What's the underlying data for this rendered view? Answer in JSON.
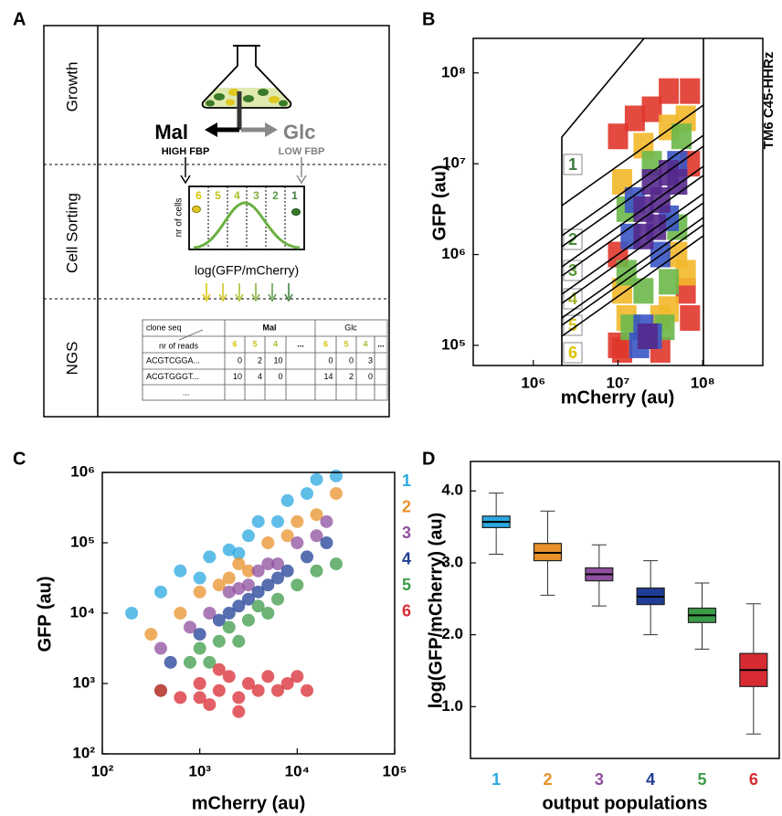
{
  "panel_a": {
    "label": "A",
    "stages": [
      "Growth",
      "Cell Sorting",
      "NGS"
    ],
    "conditions": [
      {
        "name": "Mal",
        "fbp": "HIGH FBP",
        "color": "#000000"
      },
      {
        "name": "Glc",
        "fbp": "LOW FBP",
        "color": "#808080"
      }
    ],
    "histogram": {
      "gates": [
        "6",
        "5",
        "4",
        "3",
        "2",
        "1"
      ],
      "gate_colors": [
        "#d8c400",
        "#c8c21a",
        "#a9bd2c",
        "#86ad3c",
        "#5c9a44",
        "#3a7a3a"
      ],
      "ylabel": "nr of cells",
      "xlabel": "log(GFP/mCherry)"
    },
    "table": {
      "corner_top": "clone seq",
      "corner_bottom": "nr of reads",
      "groups": [
        "Mal",
        "Glc"
      ],
      "columns": [
        "6",
        "5",
        "4",
        "...",
        "6",
        "5",
        "4",
        "..."
      ],
      "rows": [
        {
          "seq": "ACGTCGGA...",
          "mal": [
            "0",
            "2",
            "10"
          ],
          "glc": [
            "0",
            "0",
            "3"
          ]
        },
        {
          "seq": "ACGTGGGT...",
          "mal": [
            "10",
            "4",
            "0"
          ],
          "glc": [
            "14",
            "2",
            "0"
          ]
        }
      ],
      "more": "..."
    }
  },
  "chart_data": [
    {
      "type": "density",
      "panel": "B",
      "title": "TM6 C45-HHRz",
      "xlabel": "mCherry (au)",
      "ylabel": "GFP (au)",
      "xscale": "log",
      "yscale": "log",
      "xlim": [
        195000,
        513000000
      ],
      "ylim": [
        60000,
        240000000
      ],
      "xticks": [
        {
          "value": 1000000,
          "label": "10⁶"
        },
        {
          "value": 10000000,
          "label": "10⁷"
        },
        {
          "value": 100000000,
          "label": "10⁸"
        }
      ],
      "yticks": [
        {
          "value": 100000,
          "label": "10⁵"
        },
        {
          "value": 1000000,
          "label": "10⁶"
        },
        {
          "value": 10000000,
          "label": "10⁷"
        },
        {
          "value": 100000000,
          "label": "10⁸"
        }
      ],
      "layers": [
        {
          "color": "#e0362b",
          "x": [
            10000000,
            10000000,
            10000000,
            70800000,
            70800000,
            25100000,
            39800000,
            63100000,
            11200000,
            31600000,
            15800000,
            70800000
          ],
          "y": [
            20000000,
            1000000,
            100000,
            63100000,
            200000,
            39800000,
            63100000,
            398000,
            89100,
            89100,
            31600000,
            10000000
          ]
        },
        {
          "color": "#f3b82a",
          "x": [
            11200000,
            11200000,
            63100000,
            63100000,
            20000000,
            39800000,
            39800000,
            12600000,
            31600000,
            50100000
          ],
          "y": [
            6310000,
            398000,
            31600000,
            631000,
            15800000,
            25100000,
            251000,
            200000,
            200000,
            1000000
          ]
        },
        {
          "color": "#6cb84a",
          "x": [
            12600000,
            12600000,
            56200000,
            25100000,
            39800000,
            20000000,
            50100000,
            14100000,
            35500000
          ],
          "y": [
            3160000,
            631000,
            20000000,
            10000000,
            501000,
            398000,
            2000000,
            158000,
            158000
          ]
        },
        {
          "color": "#3a55c4",
          "x": [
            14100000,
            15800000,
            50100000,
            31600000,
            20000000,
            25100000,
            17800000,
            39800000
          ],
          "y": [
            1580000,
            3980000,
            10000000,
            1000000,
            158000,
            126000,
            100000,
            2510000
          ]
        },
        {
          "color": "#55298c",
          "x": [
            20000000,
            25100000,
            31600000,
            39800000,
            50100000,
            20000000,
            28200000,
            22400000
          ],
          "y": [
            3160000,
            6310000,
            3980000,
            7940000,
            6310000,
            1580000,
            2000000,
            126000
          ]
        }
      ],
      "annotations": [
        {
          "text": "1",
          "color": "#3a7a3a"
        },
        {
          "text": "2",
          "color": "#4a8a3a"
        },
        {
          "text": "3",
          "color": "#5c9a36"
        },
        {
          "text": "4",
          "color": "#a3b22e"
        },
        {
          "text": "5",
          "color": "#d6c41c"
        },
        {
          "text": "6",
          "color": "#dcc200"
        }
      ]
    },
    {
      "type": "scatter",
      "panel": "C",
      "xlabel": "mCherry (au)",
      "ylabel": "GFP (au)",
      "xscale": "log",
      "yscale": "log",
      "xlim": [
        100,
        100000
      ],
      "ylim": [
        100,
        1000000
      ],
      "xticks": [
        {
          "value": 100,
          "label": "10²"
        },
        {
          "value": 1000,
          "label": "10³"
        },
        {
          "value": 10000,
          "label": "10⁴"
        },
        {
          "value": 100000,
          "label": "10⁵"
        }
      ],
      "yticks": [
        {
          "value": 100,
          "label": "10²"
        },
        {
          "value": 1000,
          "label": "10³"
        },
        {
          "value": 10000,
          "label": "10⁴"
        },
        {
          "value": 100000,
          "label": "10⁵"
        },
        {
          "value": 1000000,
          "label": "10⁶"
        }
      ],
      "series": [
        {
          "name": "1",
          "color": "#2aa8e0",
          "x": [
            200,
            398,
            631,
            1000,
            1260,
            2000,
            3160,
            3980,
            6310,
            7940,
            12600,
            15800,
            25100,
            2510
          ],
          "y": [
            10000,
            20000,
            39800,
            31600,
            63100,
            79400,
            126000,
            200000,
            200000,
            398000,
            501000,
            794000,
            891000,
            70800
          ]
        },
        {
          "name": "2",
          "color": "#e8912a",
          "x": [
            316,
            631,
            1000,
            1580,
            2510,
            3160,
            5010,
            7940,
            10000,
            15800,
            25100,
            2000
          ],
          "y": [
            5010,
            10000,
            20000,
            25100,
            50100,
            39800,
            100000,
            126000,
            200000,
            251000,
            501000,
            31600
          ]
        },
        {
          "name": "3",
          "color": "#8e4f9f",
          "x": [
            398,
            794,
            1260,
            2000,
            3160,
            3980,
            6310,
            10000,
            15800,
            20000,
            2510,
            5010
          ],
          "y": [
            3160,
            6310,
            10000,
            20000,
            25100,
            39800,
            50100,
            100000,
            126000,
            200000,
            22400,
            50100
          ]
        },
        {
          "name": "4",
          "color": "#1f3d95",
          "x": [
            501,
            1000,
            1580,
            2510,
            3160,
            5010,
            7940,
            12600,
            20000,
            2000,
            3980,
            6310
          ],
          "y": [
            2000,
            5010,
            7940,
            12600,
            15800,
            25100,
            39800,
            63100,
            100000,
            10000,
            20000,
            31600
          ]
        },
        {
          "name": "5",
          "color": "#3c9b48",
          "x": [
            398,
            794,
            1000,
            1580,
            2000,
            3160,
            3980,
            6310,
            10000,
            15800,
            25100,
            2510,
            1260,
            5010
          ],
          "y": [
            794,
            2000,
            3160,
            3980,
            6310,
            7940,
            12600,
            15800,
            25100,
            39800,
            50100,
            3980,
            2000,
            10000
          ]
        },
        {
          "name": "6",
          "color": "#d82a33",
          "x": [
            398,
            631,
            1000,
            1260,
            1580,
            2000,
            2510,
            3160,
            3980,
            5010,
            6310,
            7940,
            10000,
            1580,
            2510,
            1000,
            12600
          ],
          "y": [
            794,
            631,
            1000,
            501,
            794,
            1260,
            631,
            1000,
            794,
            1260,
            794,
            1000,
            1260,
            1580,
            398,
            631,
            794
          ]
        }
      ]
    },
    {
      "type": "box",
      "panel": "D",
      "xlabel": "output populations",
      "ylabel": "log(GFP/mCherry) (au)",
      "categories": [
        "1",
        "2",
        "3",
        "4",
        "5",
        "6"
      ],
      "colors": [
        "#2aa8e0",
        "#e8912a",
        "#8e4f9f",
        "#1f3d95",
        "#3c9b48",
        "#d82a33"
      ],
      "whisker_low": [
        3.12,
        2.55,
        2.4,
        2.0,
        1.8,
        0.62
      ],
      "q1": [
        3.49,
        3.03,
        2.75,
        2.42,
        2.17,
        1.28
      ],
      "median": [
        3.57,
        3.14,
        2.84,
        2.53,
        2.27,
        1.51
      ],
      "q3": [
        3.65,
        3.27,
        2.93,
        2.65,
        2.37,
        1.74
      ],
      "whisker_high": [
        3.97,
        3.72,
        3.25,
        3.03,
        2.72,
        2.43
      ],
      "ylim": [
        0.28,
        4.41
      ],
      "yticks": [
        {
          "value": 1,
          "label": "1.0"
        },
        {
          "value": 2,
          "label": "2.0"
        },
        {
          "value": 3,
          "label": "3.0"
        },
        {
          "value": 4,
          "label": "4.0"
        }
      ]
    }
  ]
}
